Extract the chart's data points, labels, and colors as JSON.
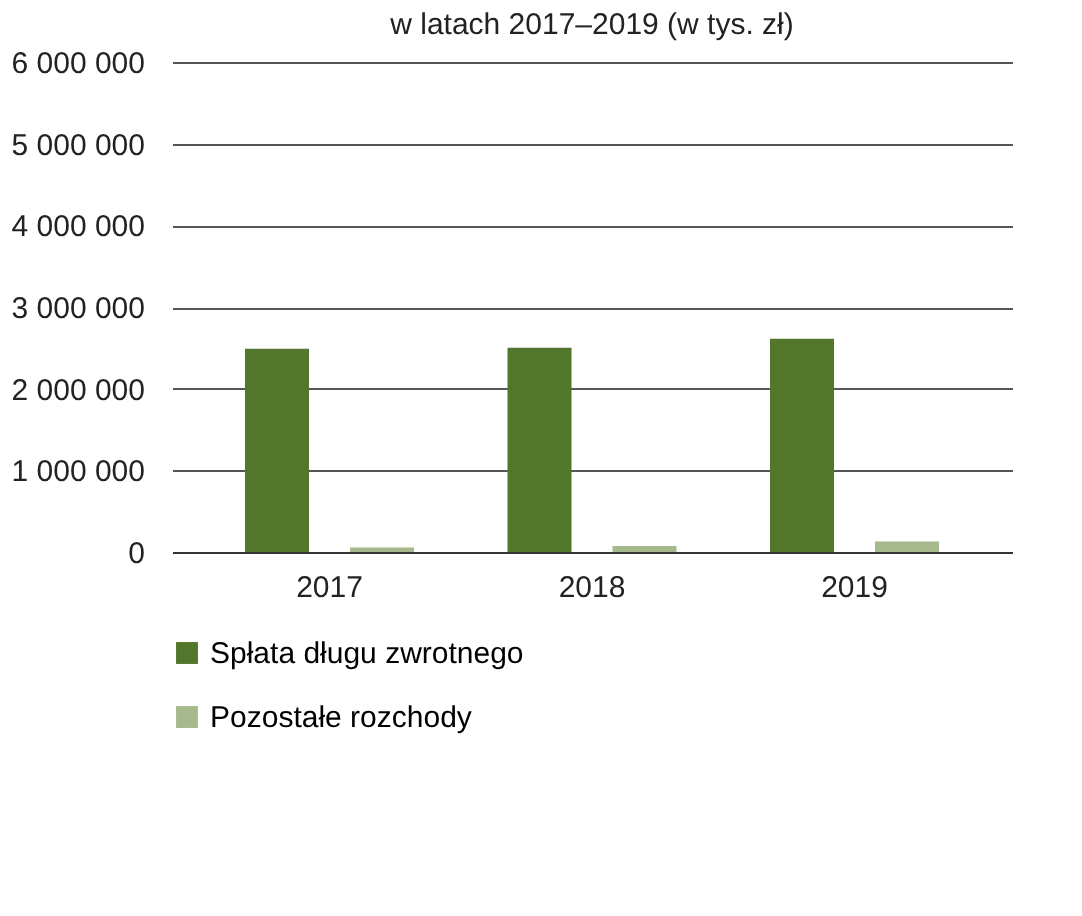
{
  "chart_data": {
    "type": "bar",
    "title": "w latach 2017–2019 (w tys. zł)",
    "categories": [
      "2017",
      "2018",
      "2019"
    ],
    "series": [
      {
        "name": "Spłata długu zwrotnego",
        "color": "#52762b",
        "values": [
          2490000,
          2500000,
          2610000
        ]
      },
      {
        "name": "Pozostałe rozchody",
        "color": "#a6b98c",
        "values": [
          55000,
          75000,
          130000
        ]
      }
    ],
    "ylim": [
      0,
      6000000
    ],
    "yticks": [
      {
        "value": 0,
        "label": "0"
      },
      {
        "value": 1000000,
        "label": "1 000 000"
      },
      {
        "value": 2000000,
        "label": "2 000 000"
      },
      {
        "value": 3000000,
        "label": "3 000 000"
      },
      {
        "value": 4000000,
        "label": "4 000 000"
      },
      {
        "value": 5000000,
        "label": "5 000 000"
      },
      {
        "value": 6000000,
        "label": "6 000 000"
      }
    ],
    "grid": "y",
    "legend": "bottom"
  }
}
